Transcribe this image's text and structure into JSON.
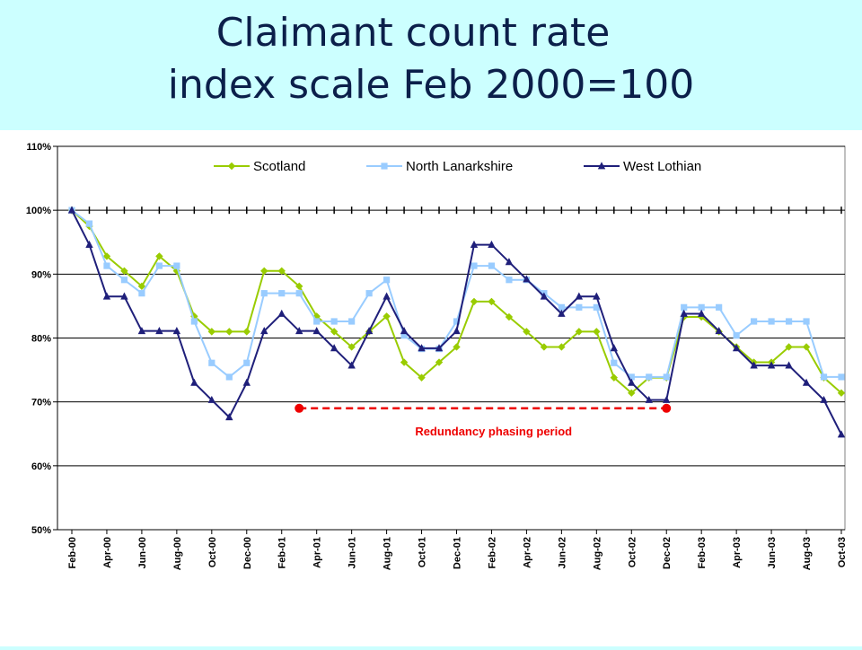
{
  "title_line1": "Claimant count rate",
  "title_line2": "index scale Feb 2000=100",
  "chart_data": {
    "type": "line",
    "x": [
      "Feb-00",
      "Mar-00",
      "Apr-00",
      "May-00",
      "Jun-00",
      "Jul-00",
      "Aug-00",
      "Sep-00",
      "Oct-00",
      "Nov-00",
      "Dec-00",
      "Jan-01",
      "Feb-01",
      "Mar-01",
      "Apr-01",
      "May-01",
      "Jun-01",
      "Jul-01",
      "Aug-01",
      "Sep-01",
      "Oct-01",
      "Nov-01",
      "Dec-01",
      "Jan-02",
      "Feb-02",
      "Mar-02",
      "Apr-02",
      "May-02",
      "Jun-02",
      "Jul-02",
      "Aug-02",
      "Sep-02",
      "Oct-02",
      "Nov-02",
      "Dec-02",
      "Jan-03",
      "Feb-03",
      "Mar-03",
      "Apr-03",
      "May-03",
      "Jun-03",
      "Jul-03",
      "Aug-03",
      "Sep-03",
      "Oct-03"
    ],
    "xtick_labels": [
      "Feb-00",
      "Apr-00",
      "Jun-00",
      "Aug-00",
      "Oct-00",
      "Dec-00",
      "Feb-01",
      "Apr-01",
      "Jun-01",
      "Aug-01",
      "Oct-01",
      "Dec-01",
      "Feb-02",
      "Apr-02",
      "Jun-02",
      "Aug-02",
      "Oct-02",
      "Dec-02",
      "Feb-03",
      "Apr-03",
      "Jun-03",
      "Aug-03",
      "Oct-03"
    ],
    "ylim": [
      50,
      110
    ],
    "yticks": [
      50,
      60,
      70,
      80,
      90,
      100,
      110
    ],
    "ytick_labels": [
      "50%",
      "60%",
      "70%",
      "80%",
      "90%",
      "100%",
      "110%"
    ],
    "grid": "horizontal",
    "legend_position": "top",
    "series": [
      {
        "name": "Scotland",
        "color": "#99cc00",
        "marker": "diamond",
        "values": [
          100,
          97.5,
          92.8,
          90.5,
          88.1,
          92.8,
          90.5,
          83.4,
          81,
          81,
          81,
          90.5,
          90.5,
          88.1,
          83.4,
          81,
          78.6,
          81,
          83.4,
          76.2,
          73.8,
          76.2,
          78.6,
          85.7,
          85.7,
          83.3,
          81,
          78.6,
          78.6,
          81,
          81,
          73.8,
          71.4,
          73.8,
          73.8,
          83.3,
          83.3,
          81,
          78.6,
          76.2,
          76.2,
          78.6,
          78.6,
          73.8,
          71.4
        ]
      },
      {
        "name": "North Lanarkshire",
        "color": "#99ccff",
        "marker": "square",
        "values": [
          100,
          97.9,
          91.3,
          89.1,
          87,
          91.3,
          91.3,
          82.6,
          76.1,
          73.9,
          76.1,
          87,
          87,
          87,
          82.6,
          82.6,
          82.6,
          87,
          89.1,
          80.4,
          78.3,
          78.3,
          82.6,
          91.3,
          91.3,
          89.1,
          89.1,
          87,
          84.8,
          84.8,
          84.8,
          76.1,
          73.9,
          73.9,
          73.9,
          84.8,
          84.8,
          84.8,
          80.4,
          82.6,
          82.6,
          82.6,
          82.6,
          73.9,
          73.9
        ]
      },
      {
        "name": "West Lothian",
        "color": "#1f1f7a",
        "marker": "triangle",
        "values": [
          100,
          94.6,
          86.5,
          86.5,
          81.1,
          81.1,
          81.1,
          73,
          70.3,
          67.6,
          73,
          81.1,
          83.8,
          81.1,
          81.1,
          78.4,
          75.7,
          81.1,
          86.5,
          81.1,
          78.4,
          78.4,
          81.1,
          94.6,
          94.6,
          91.9,
          89.2,
          86.5,
          83.8,
          86.5,
          86.5,
          78.4,
          73,
          70.3,
          70.3,
          83.8,
          83.8,
          81.1,
          78.4,
          75.7,
          75.7,
          75.7,
          73,
          70.3,
          64.9
        ]
      }
    ],
    "annotation": {
      "text": "Redundancy phasing period",
      "color": "#ee0000",
      "from": "Mar-01",
      "to": "Dec-02",
      "y": 69
    }
  }
}
